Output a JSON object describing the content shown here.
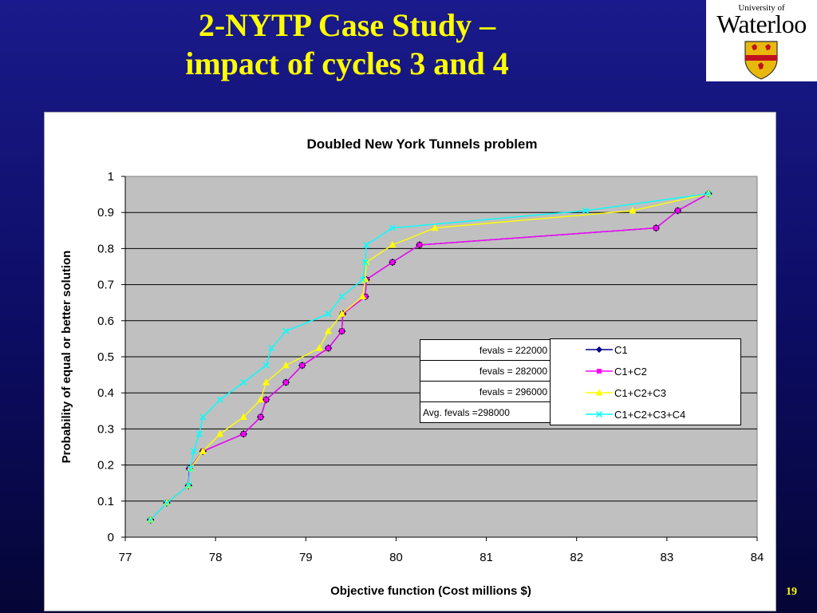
{
  "slide": {
    "title_line1": "2-NYTP Case Study –",
    "title_line2": "impact of cycles 3 and 4",
    "page_number": "19",
    "logo": {
      "small_text": "University of",
      "big_text": "Waterloo",
      "shield_colors": {
        "gold": "#e8b90c",
        "red": "#c0111f"
      }
    }
  },
  "fevals_table": [
    "fevals = 222000",
    "fevals = 282000",
    "fevals = 296000",
    "Avg. fevals =298000"
  ],
  "chart_data": {
    "type": "line",
    "title": "Doubled New York Tunnels problem",
    "xlabel": "Objective function (Cost millions $)",
    "ylabel": "Probability of equal or better solution",
    "xlim": [
      77,
      84
    ],
    "ylim": [
      0,
      1
    ],
    "xticks": [
      77,
      78,
      79,
      80,
      81,
      82,
      83,
      84
    ],
    "yticks": [
      0,
      0.1,
      0.2,
      0.3,
      0.4,
      0.5,
      0.6,
      0.7,
      0.8,
      0.9,
      1
    ],
    "grid": "horizontal",
    "plot_background": "#c0c0c0",
    "legend_position": "right",
    "series": [
      {
        "name": "C1",
        "color": "#00008b",
        "marker": "diamond",
        "points": [
          [
            77.28,
            0.048
          ],
          [
            77.46,
            0.095
          ],
          [
            77.7,
            0.143
          ],
          [
            77.71,
            0.19
          ],
          [
            77.86,
            0.238
          ],
          [
            78.31,
            0.286
          ],
          [
            78.5,
            0.333
          ],
          [
            78.56,
            0.381
          ],
          [
            78.78,
            0.429
          ],
          [
            78.96,
            0.476
          ],
          [
            79.25,
            0.524
          ],
          [
            79.4,
            0.571
          ],
          [
            79.41,
            0.619
          ],
          [
            79.66,
            0.667
          ],
          [
            79.67,
            0.714
          ],
          [
            79.96,
            0.762
          ],
          [
            80.26,
            0.81
          ],
          [
            82.88,
            0.857
          ],
          [
            83.12,
            0.905
          ],
          [
            83.46,
            0.952
          ]
        ]
      },
      {
        "name": "C1+C2",
        "color": "#ff00ff",
        "marker": "square",
        "points": [
          [
            77.28,
            0.048
          ],
          [
            77.46,
            0.095
          ],
          [
            77.7,
            0.143
          ],
          [
            77.71,
            0.19
          ],
          [
            77.86,
            0.238
          ],
          [
            78.31,
            0.286
          ],
          [
            78.5,
            0.333
          ],
          [
            78.56,
            0.381
          ],
          [
            78.78,
            0.429
          ],
          [
            78.96,
            0.476
          ],
          [
            79.25,
            0.524
          ],
          [
            79.4,
            0.571
          ],
          [
            79.41,
            0.619
          ],
          [
            79.66,
            0.667
          ],
          [
            79.67,
            0.714
          ],
          [
            79.96,
            0.762
          ],
          [
            80.26,
            0.81
          ],
          [
            82.88,
            0.857
          ],
          [
            83.12,
            0.905
          ],
          [
            83.46,
            0.952
          ]
        ]
      },
      {
        "name": "C1+C2+C3",
        "color": "#ffff00",
        "marker": "triangle",
        "points": [
          [
            77.28,
            0.048
          ],
          [
            77.46,
            0.095
          ],
          [
            77.7,
            0.143
          ],
          [
            77.72,
            0.19
          ],
          [
            77.86,
            0.238
          ],
          [
            78.05,
            0.286
          ],
          [
            78.31,
            0.333
          ],
          [
            78.5,
            0.381
          ],
          [
            78.56,
            0.429
          ],
          [
            78.78,
            0.476
          ],
          [
            79.15,
            0.524
          ],
          [
            79.25,
            0.571
          ],
          [
            79.4,
            0.619
          ],
          [
            79.63,
            0.667
          ],
          [
            79.66,
            0.714
          ],
          [
            79.67,
            0.762
          ],
          [
            79.96,
            0.81
          ],
          [
            80.43,
            0.857
          ],
          [
            82.62,
            0.905
          ],
          [
            83.46,
            0.952
          ]
        ]
      },
      {
        "name": "C1+C2+C3+C4",
        "color": "#00ffff",
        "marker": "x",
        "points": [
          [
            77.28,
            0.048
          ],
          [
            77.46,
            0.095
          ],
          [
            77.7,
            0.143
          ],
          [
            77.72,
            0.19
          ],
          [
            77.76,
            0.238
          ],
          [
            77.82,
            0.286
          ],
          [
            77.86,
            0.333
          ],
          [
            78.05,
            0.381
          ],
          [
            78.31,
            0.429
          ],
          [
            78.56,
            0.476
          ],
          [
            78.62,
            0.524
          ],
          [
            78.78,
            0.571
          ],
          [
            79.25,
            0.619
          ],
          [
            79.4,
            0.667
          ],
          [
            79.63,
            0.714
          ],
          [
            79.66,
            0.762
          ],
          [
            79.67,
            0.81
          ],
          [
            79.96,
            0.857
          ],
          [
            82.1,
            0.905
          ],
          [
            83.46,
            0.952
          ]
        ]
      }
    ]
  }
}
